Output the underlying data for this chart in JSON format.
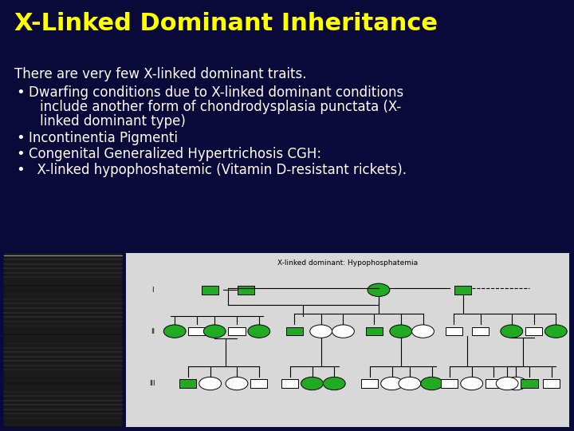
{
  "title": "X-Linked Dominant Inheritance",
  "title_color": "#FFFF00",
  "title_fontsize": 22,
  "background_color": "#0A0A3A",
  "text_color": "#FFFFFF",
  "body_fontsize": 12,
  "intro_text": "There are very few X-linked dominant traits.",
  "fig_width": 7.2,
  "fig_height": 5.4,
  "dpi": 100,
  "pedigree_bg": "#D8D8D8",
  "pedigree_title": "X-linked dominant: Hypophosphatemia",
  "green_fill": "#22AA22",
  "gen_labels": [
    "I",
    "II",
    "III"
  ]
}
